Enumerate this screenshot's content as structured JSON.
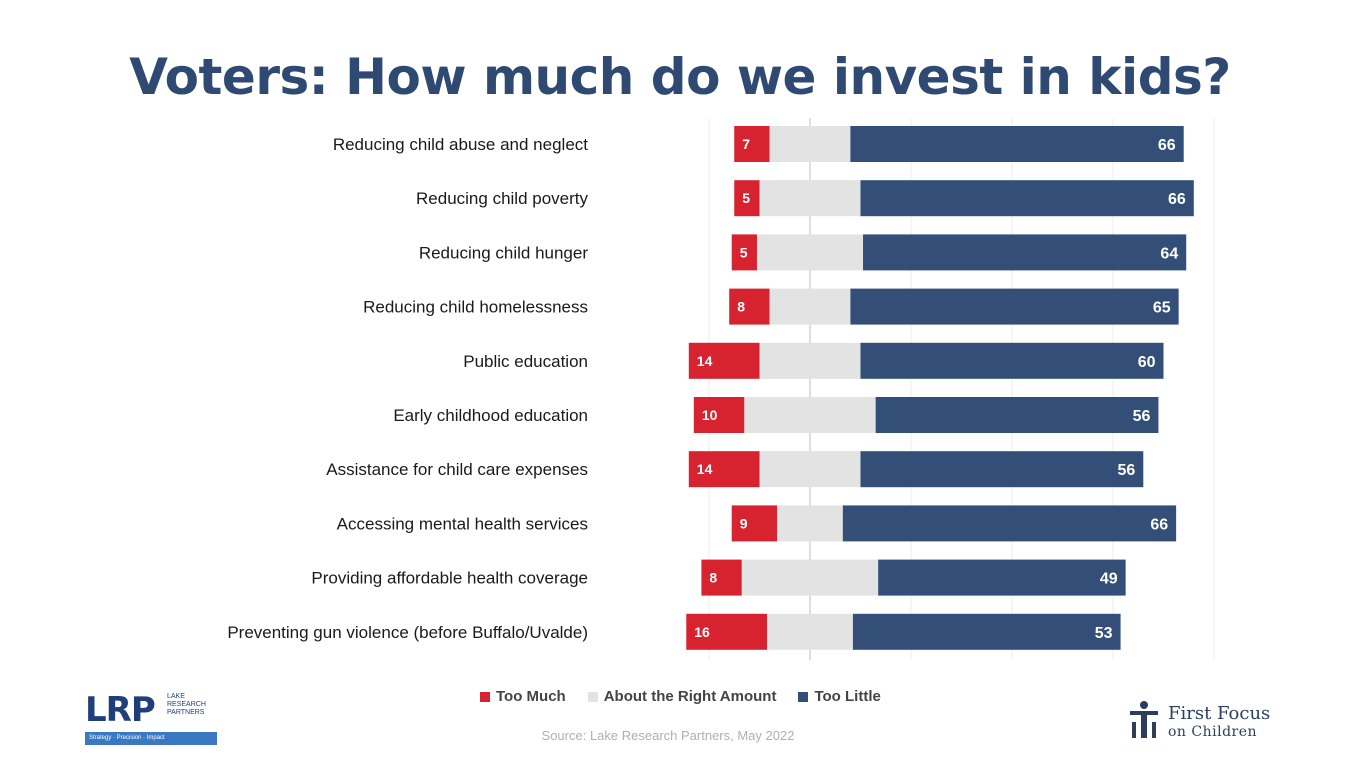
{
  "title": "Voters: How much do we invest in kids?",
  "chart_data": {
    "type": "bar",
    "orientation": "horizontal-diverging",
    "categories": [
      "Reducing child abuse and neglect",
      "Reducing child poverty",
      "Reducing child hunger",
      "Reducing child homelessness",
      "Public education",
      "Early childhood education",
      "Assistance for child care expenses",
      "Accessing mental health services",
      "Providing affordable health coverage",
      "Preventing gun violence (before Buffalo/Uvalde)"
    ],
    "series": [
      {
        "name": "Too Much",
        "color": "#d7222f",
        "values": [
          7,
          5,
          5,
          8,
          14,
          10,
          14,
          9,
          8,
          16
        ],
        "labeled": true
      },
      {
        "name": "About the Right Amount",
        "color": "#e3e3e3",
        "values": [
          16,
          20,
          21,
          16,
          20,
          26,
          20,
          13,
          27,
          17
        ],
        "labeled": false
      },
      {
        "name": "Too Little",
        "color": "#334f78",
        "values": [
          66,
          66,
          64,
          65,
          60,
          56,
          56,
          66,
          49,
          53
        ],
        "labeled": true
      }
    ],
    "xlim": [
      -20,
      80
    ],
    "gridlines": true,
    "legend": "bottom-center"
  },
  "legend": {
    "too_much": "Too Much",
    "about_right": "About the Right Amount",
    "too_little": "Too Little"
  },
  "source": "Source: Lake Research Partners, May 2022",
  "logos": {
    "lrp": {
      "mark": "LRP",
      "name": "LAKE RESEARCH PARTNERS",
      "tagline": "Strategy · Precision · Impact"
    },
    "ffc": {
      "line1": "First Focus",
      "line2": "on Children"
    }
  }
}
